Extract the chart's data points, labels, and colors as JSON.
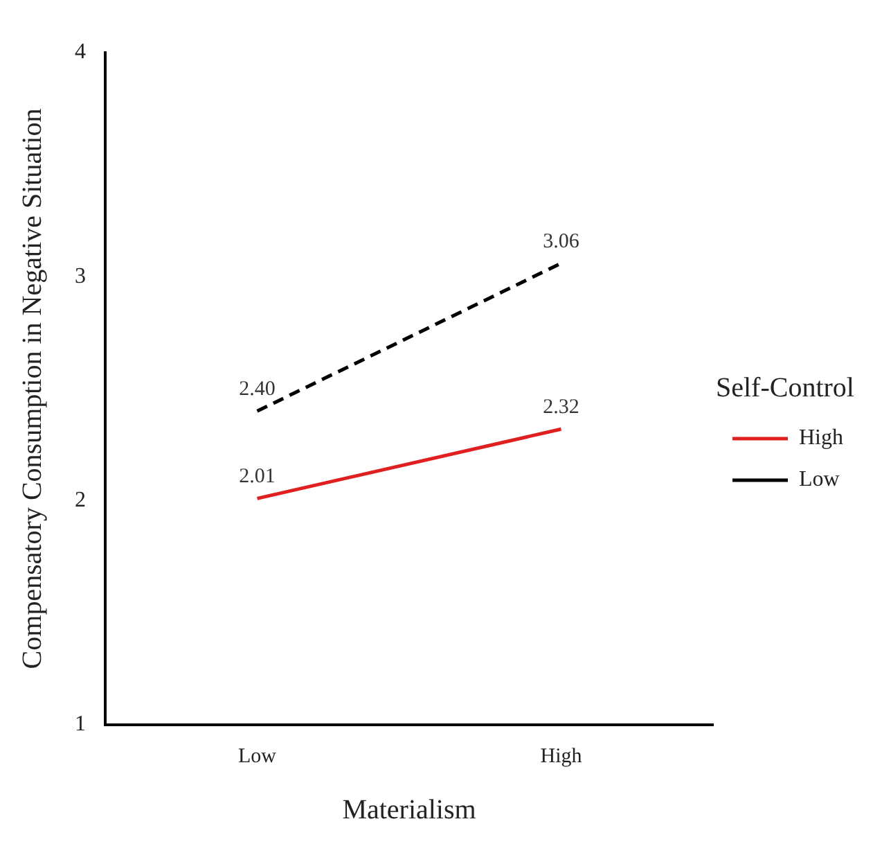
{
  "chart_data": {
    "type": "line",
    "xlabel": "Materialism",
    "ylabel": "Compensatory Consumption in Negative Situation",
    "legend_title": "Self-Control",
    "categories": [
      "Low",
      "High"
    ],
    "series": [
      {
        "name": "High",
        "color": "#e02020",
        "values": [
          2.01,
          2.32
        ],
        "line_style": "solid",
        "value_labels": [
          "2.01",
          "2.32"
        ]
      },
      {
        "name": "Low",
        "color": "#000000",
        "values": [
          2.4,
          3.06
        ],
        "line_style": "dashed",
        "value_labels": [
          "2.40",
          "3.06"
        ]
      }
    ],
    "ylim": [
      1,
      4
    ],
    "yticks": [
      1,
      2,
      3,
      4
    ],
    "grid": false,
    "legend": "right",
    "marker": "none"
  }
}
